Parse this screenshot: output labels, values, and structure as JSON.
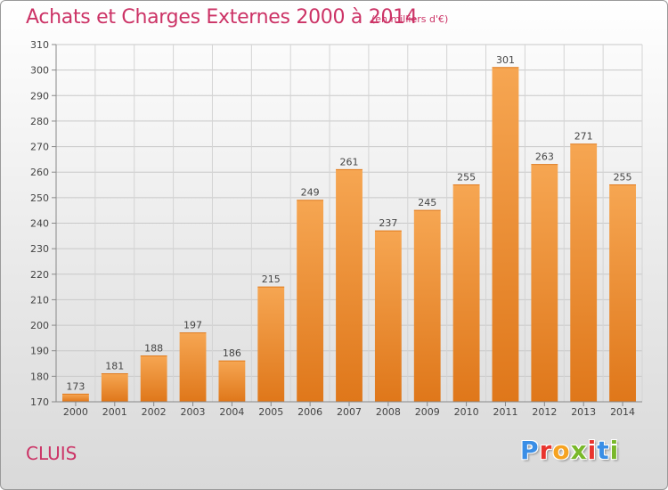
{
  "header": {
    "title": "Achats et Charges Externes 2000 à 2014",
    "subtitle": "(en milliers d'€)"
  },
  "footer": {
    "commune": "CLUIS",
    "logo": [
      "P",
      "r",
      "o",
      "x",
      "i",
      "t",
      "i"
    ]
  },
  "colors": {
    "title": "#cc3366",
    "bar_light": "#f5a452",
    "bar_dark": "#e07a1c",
    "logo": [
      "#3a8ee6",
      "#e8342e",
      "#f6a321",
      "#79b82a",
      "#e8342e",
      "#3a8ee6",
      "#79b82a"
    ]
  },
  "chart_data": {
    "type": "bar",
    "categories": [
      "2000",
      "2001",
      "2002",
      "2003",
      "2004",
      "2005",
      "2006",
      "2007",
      "2008",
      "2009",
      "2010",
      "2011",
      "2012",
      "2013",
      "2014"
    ],
    "values": [
      173,
      181,
      188,
      197,
      186,
      215,
      249,
      261,
      237,
      245,
      255,
      301,
      263,
      271,
      255
    ],
    "ylim": [
      170,
      310
    ],
    "yticks": [
      170,
      180,
      190,
      200,
      210,
      220,
      230,
      240,
      250,
      260,
      270,
      280,
      290,
      300,
      310
    ],
    "grid": true,
    "data_labels": true
  }
}
